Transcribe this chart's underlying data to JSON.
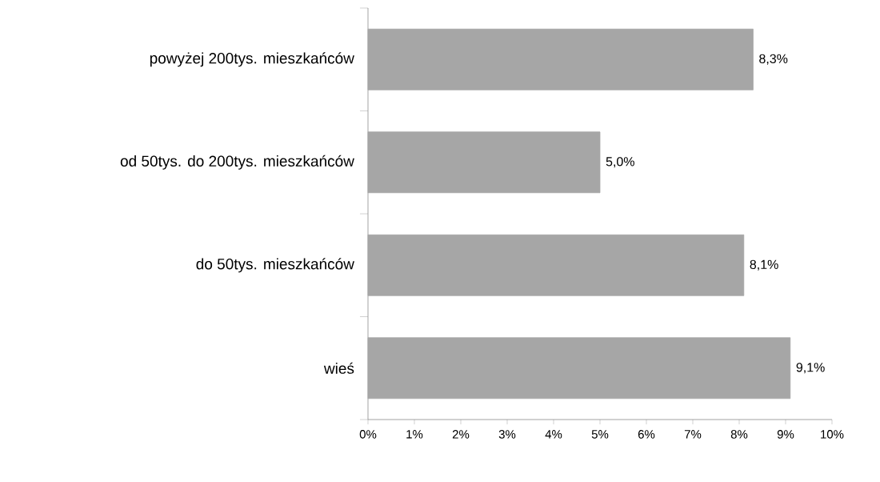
{
  "chart_data": {
    "type": "bar",
    "orientation": "horizontal",
    "categories": [
      "powyżej 200tys. mieszkańców",
      "od 50tys. do 200tys. mieszkańców",
      "do 50tys. mieszkańców",
      "wieś"
    ],
    "values": [
      8.3,
      5.0,
      8.1,
      9.1
    ],
    "value_labels": [
      "8,3%",
      "5,0%",
      "8,1%",
      "9,1%"
    ],
    "color": "#a6a6a6",
    "xlim": [
      0,
      10
    ],
    "xticks": [
      {
        "value": 0,
        "label": "0%"
      },
      {
        "value": 1,
        "label": "1%"
      },
      {
        "value": 2,
        "label": "2%"
      },
      {
        "value": 3,
        "label": "3%"
      },
      {
        "value": 4,
        "label": "4%"
      },
      {
        "value": 5,
        "label": "5%"
      },
      {
        "value": 6,
        "label": "6%"
      },
      {
        "value": 7,
        "label": "7%"
      },
      {
        "value": 8,
        "label": "8%"
      },
      {
        "value": 9,
        "label": "9%"
      },
      {
        "value": 10,
        "label": "10%"
      }
    ],
    "grid": false
  }
}
